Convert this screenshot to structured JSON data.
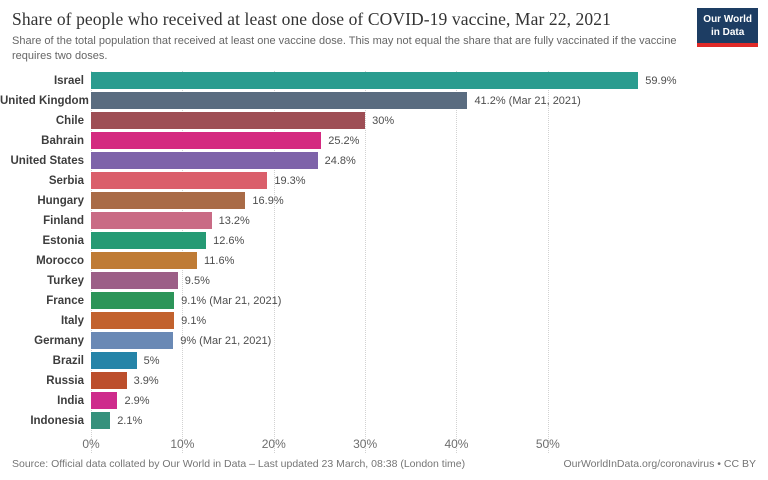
{
  "header": {
    "title": "Share of people who received at least one dose of COVID-19 vaccine, Mar 22, 2021",
    "subtitle": "Share of the total population that received at least one vaccine dose. This may not equal the share that are fully vaccinated if the vaccine requires two doses.",
    "logo": {
      "line1": "Our World",
      "line2": "in Data",
      "bg_color": "#1d3d63",
      "stripe_color": "#e02a28",
      "text_color": "#ffffff"
    }
  },
  "chart_data": {
    "type": "bar",
    "orientation": "horizontal",
    "title": "Share of people who received at least one dose of COVID-19 vaccine, Mar 22, 2021",
    "xlabel": "",
    "ylabel": "",
    "axis_max": 73,
    "tick_values": [
      0,
      10,
      20,
      30,
      40,
      50
    ],
    "x_ticks": [
      "0%",
      "10%",
      "20%",
      "30%",
      "40%",
      "50%"
    ],
    "grid": "dotted-vertical",
    "bars": [
      {
        "country": "Israel",
        "value": 59.9,
        "label": "59.9%",
        "color": "#2a9c8f"
      },
      {
        "country": "United Kingdom",
        "value": 41.2,
        "label": "41.2% (Mar 21, 2021)",
        "color": "#5a6c80"
      },
      {
        "country": "Chile",
        "value": 30.0,
        "label": "30%",
        "color": "#9e4e55"
      },
      {
        "country": "Bahrain",
        "value": 25.2,
        "label": "25.2%",
        "color": "#d42a80"
      },
      {
        "country": "United States",
        "value": 24.8,
        "label": "24.8%",
        "color": "#7e63a9"
      },
      {
        "country": "Serbia",
        "value": 19.3,
        "label": "19.3%",
        "color": "#da5f6b"
      },
      {
        "country": "Hungary",
        "value": 16.9,
        "label": "16.9%",
        "color": "#a96b47"
      },
      {
        "country": "Finland",
        "value": 13.2,
        "label": "13.2%",
        "color": "#c96b85"
      },
      {
        "country": "Estonia",
        "value": 12.6,
        "label": "12.6%",
        "color": "#259a74"
      },
      {
        "country": "Morocco",
        "value": 11.6,
        "label": "11.6%",
        "color": "#bf7b35"
      },
      {
        "country": "Turkey",
        "value": 9.5,
        "label": "9.5%",
        "color": "#9c5f87"
      },
      {
        "country": "France",
        "value": 9.1,
        "label": "9.1% (Mar 21, 2021)",
        "color": "#2c9559"
      },
      {
        "country": "Italy",
        "value": 9.1,
        "label": "9.1%",
        "color": "#c2622e"
      },
      {
        "country": "Germany",
        "value": 9.0,
        "label": "9% (Mar 21, 2021)",
        "color": "#6a89b5"
      },
      {
        "country": "Brazil",
        "value": 5.0,
        "label": "5%",
        "color": "#2584a8"
      },
      {
        "country": "Russia",
        "value": 3.9,
        "label": "3.9%",
        "color": "#bc4e2c"
      },
      {
        "country": "India",
        "value": 2.9,
        "label": "2.9%",
        "color": "#ce2b8c"
      },
      {
        "country": "Indonesia",
        "value": 2.1,
        "label": "2.1%",
        "color": "#35917c"
      }
    ]
  },
  "footer": {
    "source": "Source: Official data collated by Our World in Data – Last updated 23 March, 08:38 (London time)",
    "link": "OurWorldInData.org/coronavirus • CC BY"
  }
}
